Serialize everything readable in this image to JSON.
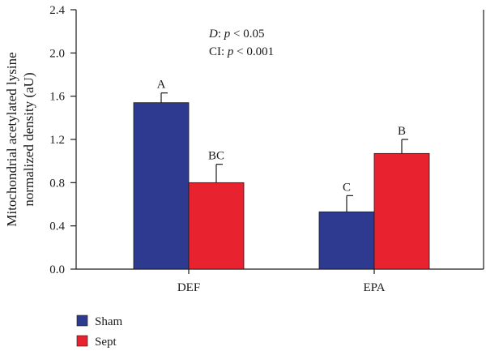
{
  "chart_data": {
    "type": "bar",
    "categories": [
      "DEF",
      "EPA"
    ],
    "series": [
      {
        "name": "Sham",
        "color": "#2e3a8f",
        "values": [
          1.54,
          0.53
        ],
        "errors": [
          0.09,
          0.15
        ],
        "labels": [
          "A",
          "C"
        ]
      },
      {
        "name": "Sept",
        "color": "#e8232f",
        "values": [
          0.8,
          1.07
        ],
        "errors": [
          0.17,
          0.13
        ],
        "labels": [
          "BC",
          "B"
        ]
      }
    ],
    "ylabel": [
      "Mitochondrial acetylated lysine",
      "normalized density (aU)"
    ],
    "ylim": [
      0,
      2.4
    ],
    "yticks": [
      0.0,
      0.4,
      0.8,
      1.2,
      1.6,
      2.0,
      2.4
    ],
    "ytick_labels": [
      "0.0",
      "0.4",
      "0.8",
      "1.2",
      "1.6",
      "2.0",
      "2.4"
    ],
    "stats": [
      {
        "term": "D",
        "text": ": p < 0.05"
      },
      {
        "term": "CI",
        "text": ": p < 0.001"
      }
    ],
    "legend_position": "bottom-left",
    "grid": false
  }
}
